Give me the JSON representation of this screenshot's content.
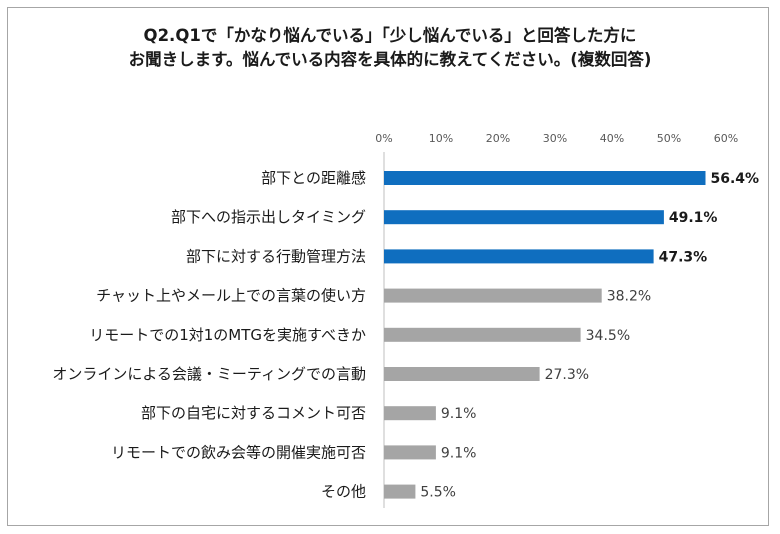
{
  "chart_data": {
    "type": "bar",
    "orientation": "horizontal",
    "title_lines": [
      "Q2.Q1で「かなり悩んでいる」「少し悩んでいる」と回答した方に",
      "お聞きします。悩んでいる内容を具体的に教えてください。(複数回答)"
    ],
    "categories": [
      "部下との距離感",
      "部下への指示出しタイミング",
      "部下に対する行動管理方法",
      "チャット上やメール上での言葉の使い方",
      "リモートでの1対1のMTGを実施すべきか",
      "オンラインによる会議・ミーティングでの言動",
      "部下の自宅に対するコメント可否",
      "リモートでの飲み会等の開催実施可否",
      "その他"
    ],
    "values": [
      56.4,
      49.1,
      47.3,
      38.2,
      34.5,
      27.3,
      9.1,
      9.1,
      5.5
    ],
    "value_labels": [
      "56.4%",
      "49.1%",
      "47.3%",
      "38.2%",
      "34.5%",
      "27.3%",
      "9.1%",
      "9.1%",
      "5.5%"
    ],
    "highlighted_count": 3,
    "xlim": [
      0,
      60
    ],
    "x_ticks": [
      "0%",
      "10%",
      "20%",
      "30%",
      "40%",
      "50%",
      "60%"
    ],
    "x_axis_position": "top",
    "grid": false,
    "colors": {
      "highlight": "#0f6ebf",
      "normal": "#a5a5a5",
      "axis": "#bfbfbf"
    }
  }
}
